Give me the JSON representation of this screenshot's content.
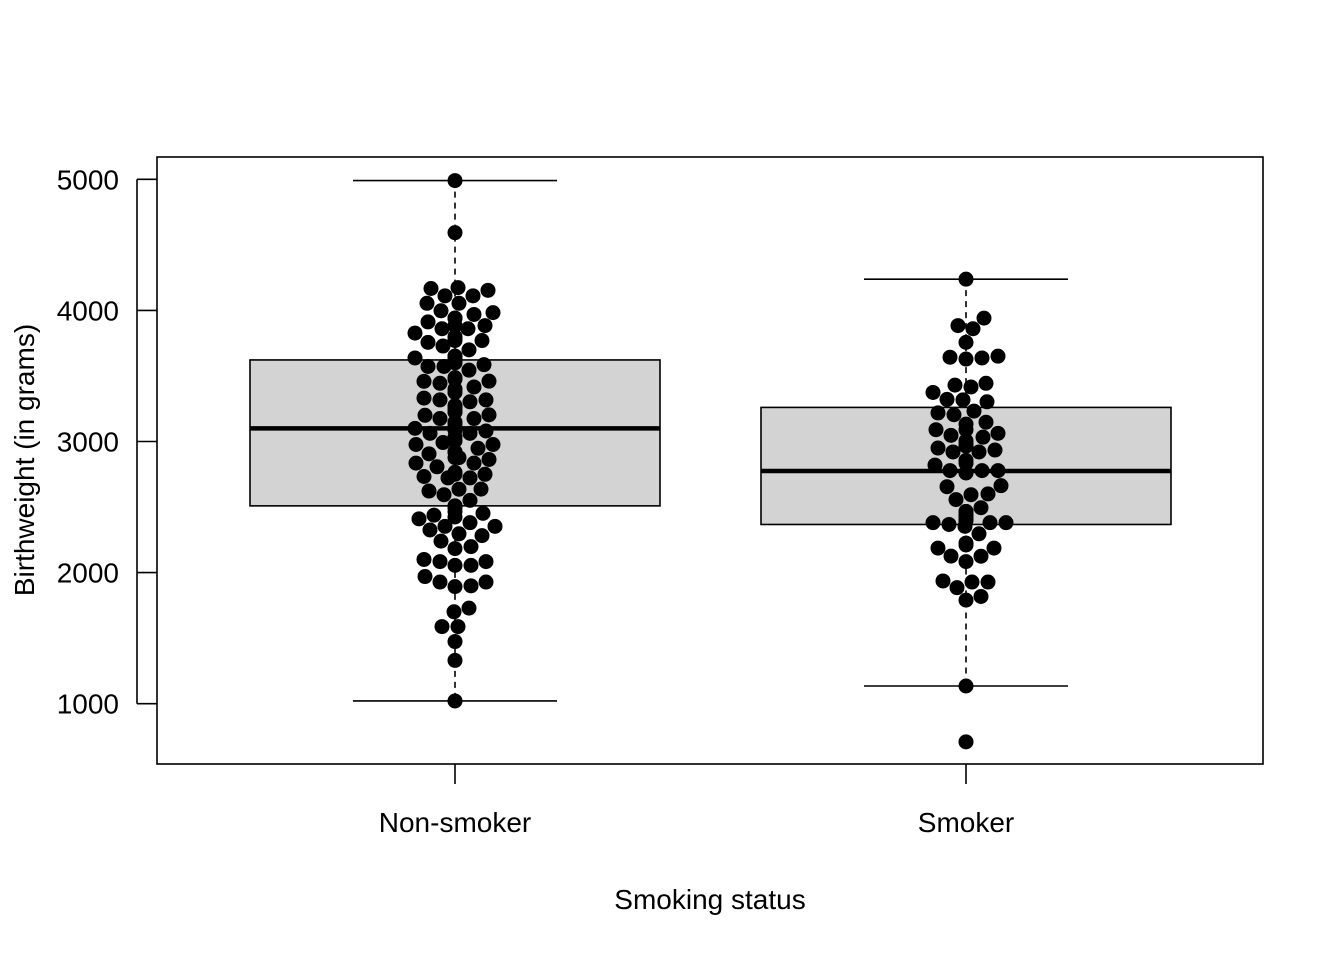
{
  "chart_data": {
    "type": "boxplot",
    "title": "",
    "xlabel": "Smoking status",
    "ylabel": "Birthweight (in grams)",
    "categories": [
      "Non-smoker",
      "Smoker"
    ],
    "yticks": [
      1000,
      2000,
      3000,
      4000,
      5000
    ],
    "ylim": [
      540,
      5170
    ],
    "grid": false,
    "legend": "none",
    "colors": {
      "box_fill": "#d3d3d3",
      "stroke": "#000000",
      "point": "#000000"
    },
    "boxes": [
      {
        "category": "Non-smoker",
        "whisker_low": 1021,
        "q1": 2509,
        "median": 3100,
        "q3": 3622,
        "whisker_high": 4990
      },
      {
        "category": "Smoker",
        "whisker_low": 1135,
        "q1": 2367,
        "median": 2775,
        "q3": 3260,
        "whisker_high": 4238
      }
    ],
    "points": [
      {
        "category": "Non-smoker",
        "values": [
          1021,
          1330,
          1474,
          1588,
          1588,
          1701,
          1729,
          1893,
          1899,
          1928,
          1928,
          1970,
          2055,
          2055,
          2084,
          2084,
          2100,
          2183,
          2198,
          2240,
          2282,
          2296,
          2325,
          2353,
          2353,
          2381,
          2410,
          2424,
          2438,
          2452,
          2466,
          2495,
          2509,
          2551,
          2594,
          2622,
          2636,
          2637,
          2722,
          2722,
          2733,
          2750,
          2750,
          2765,
          2807,
          2835,
          2835,
          2863,
          2877,
          2877,
          2906,
          2920,
          2920,
          2948,
          2977,
          2977,
          2992,
          3005,
          3035,
          3062,
          3062,
          3080,
          3090,
          3090,
          3090,
          3100,
          3104,
          3132,
          3147,
          3175,
          3175,
          3200,
          3203,
          3225,
          3225,
          3232,
          3232,
          3234,
          3260,
          3274,
          3303,
          3317,
          3317,
          3331,
          3374,
          3400,
          3416,
          3444,
          3459,
          3460,
          3475,
          3487,
          3544,
          3572,
          3572,
          3586,
          3600,
          3614,
          3614,
          3629,
          3637,
          3643,
          3651,
          3651,
          3699,
          3728,
          3756,
          3770,
          3770,
          3790,
          3799,
          3827,
          3860,
          3860,
          3884,
          3884,
          3912,
          3940,
          3941,
          3941,
          3969,
          3983,
          3997,
          4054,
          4054,
          4111,
          4111,
          4153,
          4167,
          4174,
          4593,
          4990
        ]
      },
      {
        "category": "Smoker",
        "values": [
          709,
          1135,
          1790,
          1818,
          1885,
          1928,
          1928,
          1936,
          2084,
          2125,
          2126,
          2187,
          2187,
          2211,
          2225,
          2296,
          2353,
          2367,
          2381,
          2381,
          2381,
          2395,
          2410,
          2410,
          2410,
          2414,
          2438,
          2442,
          2450,
          2466,
          2466,
          2466,
          2495,
          2557,
          2594,
          2600,
          2655,
          2663,
          2760,
          2778,
          2778,
          2778,
          2820,
          2834,
          2856,
          2920,
          2920,
          2935,
          2950,
          2965,
          2977,
          2977,
          3005,
          3033,
          3047,
          3062,
          3090,
          3090,
          3132,
          3147,
          3204,
          3218,
          3232,
          3303,
          3317,
          3321,
          3374,
          3416,
          3430,
          3444,
          3629,
          3637,
          3643,
          3651,
          3756,
          3860,
          3884,
          3941,
          4238
        ]
      }
    ]
  }
}
